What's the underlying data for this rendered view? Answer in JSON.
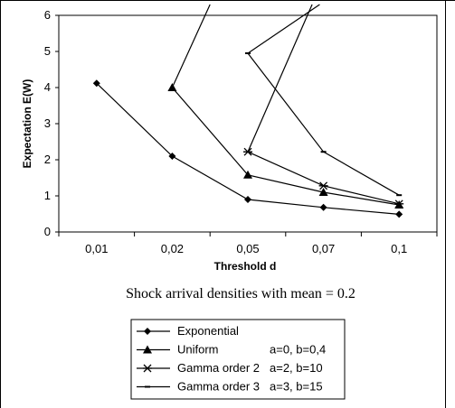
{
  "chart_data": {
    "type": "line",
    "x": [
      "0,01",
      "0,02",
      "0,05",
      "0,07",
      "0,1"
    ],
    "xlabel": "Threshold  d",
    "ylabel": "Expectation E(W)",
    "ylim": [
      0,
      6
    ],
    "yticks": [
      "0",
      "1",
      "2",
      "3",
      "4",
      "5",
      "6"
    ],
    "caption": "Shock arrival densities with mean = 0.2",
    "grid": false,
    "legend_position": "bottom",
    "series": [
      {
        "name": "Exponential",
        "params": "",
        "marker": "diamond",
        "values": [
          4.12,
          2.1,
          0.9,
          0.68,
          0.49
        ],
        "entry": null
      },
      {
        "name": "Uniform",
        "params": "a=0, b=0,4",
        "marker": "triangle",
        "values": [
          null,
          4.0,
          1.58,
          1.1,
          0.75
        ],
        "entry": [
          1.5,
          6.3
        ]
      },
      {
        "name": "Gamma order 2",
        "params": "a=2, b=10",
        "marker": "asterisk",
        "values": [
          null,
          null,
          2.22,
          1.28,
          0.78
        ],
        "entry": [
          2.85,
          6.3
        ]
      },
      {
        "name": "Gamma order 3",
        "params": "a=3, b=15",
        "marker": "dash",
        "values": [
          null,
          null,
          4.95,
          2.22,
          1.02
        ],
        "entry": [
          2.95,
          6.3
        ]
      }
    ]
  }
}
